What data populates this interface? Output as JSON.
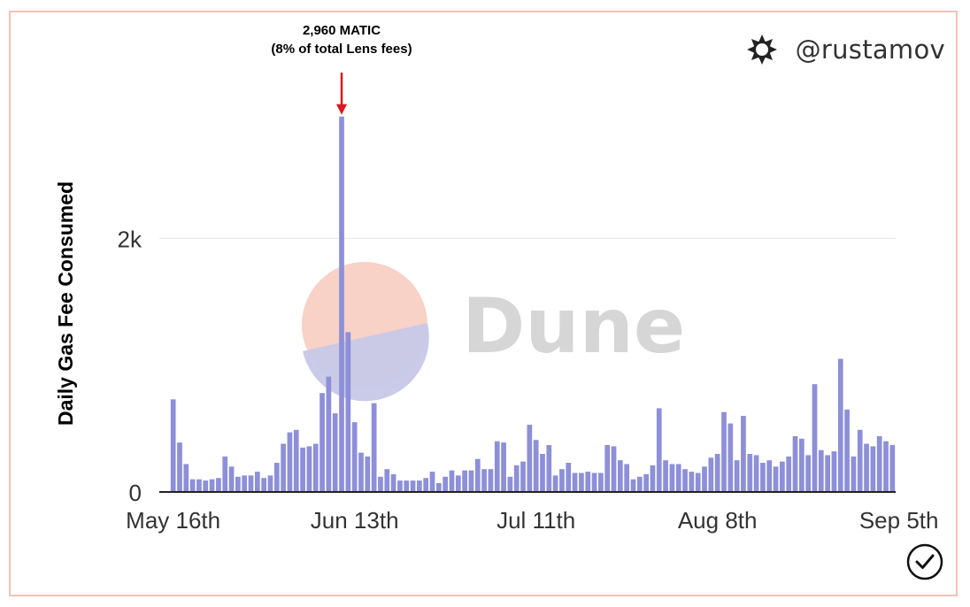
{
  "brand": {
    "handle": "@rustamov",
    "icon": "dune-asterisk-icon"
  },
  "annotation": {
    "line1": "2,960 MATIC",
    "line2": "(8% of total Lens fees)",
    "arrow_color": "#d9191c"
  },
  "watermark": {
    "text": "Dune"
  },
  "badge": {
    "icon": "check-circle-icon"
  },
  "colors": {
    "bar": "#8d8fd8",
    "frame": "#f3c1b9",
    "grid": "#e6e6e6",
    "axis": "#222222"
  },
  "chart_data": {
    "type": "bar",
    "title": "",
    "xlabel": "",
    "ylabel": "Daily Gas Fee Consumed",
    "ylim": [
      0,
      3000
    ],
    "yticks": [
      {
        "value": 0,
        "label": "0"
      },
      {
        "value": 2000,
        "label": "2k"
      }
    ],
    "xticks": [
      {
        "index": 0,
        "label": "May 16th"
      },
      {
        "index": 28,
        "label": "Jun 13th"
      },
      {
        "index": 56,
        "label": "Jul 11th"
      },
      {
        "index": 84,
        "label": "Aug 8th"
      },
      {
        "index": 112,
        "label": "Sep 5th"
      }
    ],
    "grid": "horizontal",
    "series": [
      {
        "values": [
          730,
          390,
          220,
          100,
          100,
          90,
          100,
          110,
          280,
          200,
          120,
          130,
          130,
          160,
          110,
          130,
          230,
          380,
          470,
          490,
          350,
          360,
          380,
          780,
          910,
          620,
          2960,
          1260,
          550,
          310,
          280,
          700,
          120,
          180,
          140,
          90,
          90,
          90,
          90,
          110,
          160,
          70,
          120,
          170,
          130,
          170,
          170,
          260,
          180,
          180,
          400,
          390,
          120,
          210,
          240,
          530,
          410,
          300,
          370,
          130,
          180,
          230,
          150,
          150,
          160,
          150,
          150,
          370,
          360,
          250,
          220,
          100,
          120,
          140,
          210,
          660,
          250,
          220,
          220,
          180,
          160,
          150,
          200,
          270,
          300,
          630,
          540,
          250,
          600,
          300,
          290,
          230,
          250,
          200,
          240,
          280,
          440,
          420,
          290,
          850,
          330,
          290,
          320,
          1050,
          650,
          280,
          490,
          380,
          360,
          440,
          400,
          370
        ]
      }
    ]
  }
}
